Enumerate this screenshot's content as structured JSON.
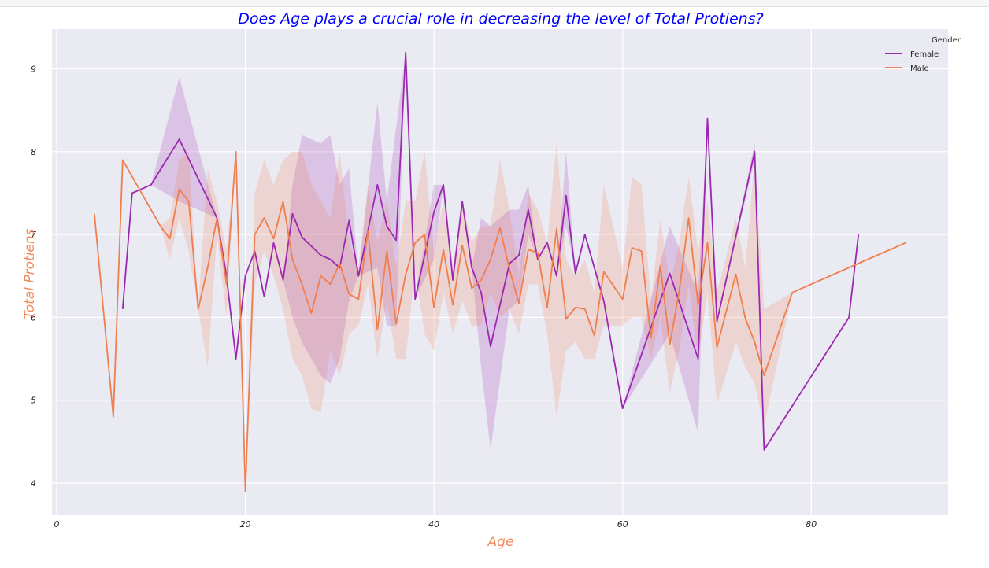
{
  "chart_data": {
    "type": "line",
    "title": "Does Age plays a crucial role in decreasing the level of Total Protiens?",
    "xlabel": "Age",
    "ylabel": "Total Protiens",
    "xlim": [
      -0.5,
      94.5
    ],
    "ylim": [
      3.62,
      9.48
    ],
    "xticks": [
      0,
      20,
      40,
      60,
      80
    ],
    "xtick_labels": [
      "0",
      "20",
      "40",
      "60",
      "80"
    ],
    "yticks": [
      4,
      5,
      6,
      7,
      8,
      9
    ],
    "ytick_labels": [
      "4",
      "5",
      "6",
      "7",
      "8",
      "9"
    ],
    "grid": true,
    "legend": {
      "title": "Gender",
      "placement": "top-right"
    },
    "colors": {
      "background": "#eaeaf2",
      "grid": "#ffffff",
      "title": "#0000ff",
      "axis_label": "#f28a5a"
    },
    "series": [
      {
        "name": "Female",
        "color": "#9c27b0",
        "x": [
          7,
          8,
          10,
          13,
          17,
          18,
          19,
          20,
          21,
          22,
          23,
          24,
          25,
          26,
          28,
          29,
          30,
          31,
          32,
          34,
          35,
          36,
          37,
          38,
          40,
          41,
          42,
          43,
          44,
          45,
          46,
          48,
          49,
          50,
          51,
          52,
          53,
          54,
          55,
          56,
          58,
          60,
          65,
          68,
          69,
          70,
          74,
          75,
          84,
          85
        ],
        "y": [
          6.1,
          7.5,
          7.6,
          8.15,
          7.2,
          6.5,
          5.5,
          6.5,
          6.8,
          6.25,
          6.9,
          6.45,
          7.25,
          6.97,
          6.75,
          6.7,
          6.6,
          7.17,
          6.5,
          7.6,
          7.1,
          6.93,
          9.2,
          6.22,
          7.27,
          7.6,
          6.45,
          7.4,
          6.6,
          6.3,
          5.65,
          6.65,
          6.75,
          7.3,
          6.7,
          6.9,
          6.5,
          7.47,
          6.53,
          7.0,
          6.2,
          4.9,
          6.53,
          5.5,
          8.4,
          5.95,
          8.0,
          4.4,
          6.0,
          7.0
        ],
        "ci_lower": [
          6.1,
          7.5,
          7.6,
          7.4,
          7.2,
          6.5,
          5.5,
          6.5,
          6.8,
          6.25,
          6.9,
          6.45,
          6.0,
          5.7,
          5.3,
          5.2,
          5.5,
          6.2,
          6.5,
          6.6,
          5.9,
          5.9,
          9.2,
          6.22,
          6.7,
          7.6,
          6.45,
          7.4,
          6.6,
          5.4,
          4.4,
          6.1,
          6.2,
          7.0,
          6.7,
          6.9,
          6.5,
          7.1,
          6.53,
          7.0,
          6.2,
          4.9,
          5.8,
          4.6,
          8.4,
          5.95,
          7.9,
          4.4,
          6.0,
          7.0
        ],
        "ci_upper": [
          6.1,
          7.5,
          7.6,
          8.9,
          7.2,
          6.5,
          5.5,
          6.5,
          6.8,
          6.25,
          6.9,
          6.45,
          7.6,
          8.2,
          8.1,
          8.2,
          7.6,
          7.8,
          6.5,
          8.6,
          7.4,
          8.3,
          9.2,
          6.22,
          7.6,
          7.6,
          6.45,
          7.4,
          6.6,
          7.2,
          7.1,
          7.3,
          7.3,
          7.6,
          6.7,
          6.9,
          6.5,
          8.0,
          6.53,
          7.0,
          6.2,
          4.9,
          7.1,
          6.3,
          8.4,
          5.95,
          8.1,
          4.4,
          6.0,
          7.0
        ]
      },
      {
        "name": "Male",
        "color": "#f07e4e",
        "x": [
          4,
          6,
          7,
          11,
          12,
          13,
          14,
          15,
          16,
          17,
          18,
          19,
          20,
          21,
          22,
          23,
          24,
          25,
          26,
          27,
          28,
          29,
          30,
          31,
          32,
          33,
          34,
          35,
          36,
          37,
          38,
          39,
          40,
          41,
          42,
          43,
          44,
          45,
          46,
          47,
          48,
          49,
          50,
          51,
          52,
          53,
          54,
          55,
          56,
          57,
          58,
          60,
          61,
          62,
          63,
          64,
          65,
          66,
          67,
          68,
          69,
          70,
          72,
          73,
          74,
          75,
          78,
          90
        ],
        "y": [
          7.25,
          4.8,
          7.9,
          7.1,
          6.95,
          7.55,
          7.4,
          6.1,
          6.6,
          7.2,
          6.4,
          8.0,
          3.9,
          7.0,
          7.2,
          6.95,
          7.4,
          6.7,
          6.4,
          6.05,
          6.5,
          6.4,
          6.65,
          6.28,
          6.22,
          7.05,
          5.85,
          6.8,
          5.92,
          6.52,
          6.9,
          7.0,
          6.12,
          6.82,
          6.15,
          6.87,
          6.35,
          6.45,
          6.7,
          7.08,
          6.58,
          6.17,
          6.82,
          6.78,
          6.12,
          7.07,
          5.98,
          6.12,
          6.1,
          5.78,
          6.55,
          6.22,
          6.84,
          6.8,
          5.75,
          6.62,
          5.67,
          6.32,
          7.2,
          6.15,
          6.9,
          5.64,
          6.52,
          5.99,
          5.7,
          5.3,
          6.3,
          6.9
        ],
        "ci_lower": [
          7.25,
          4.8,
          7.9,
          7.1,
          6.7,
          7.2,
          6.8,
          6.1,
          5.4,
          7.0,
          6.0,
          8.0,
          3.9,
          6.4,
          6.8,
          6.5,
          6.1,
          5.5,
          5.3,
          4.9,
          4.85,
          5.6,
          5.3,
          5.8,
          5.9,
          6.4,
          5.5,
          6.2,
          5.5,
          5.5,
          6.6,
          5.8,
          5.6,
          6.3,
          5.8,
          6.2,
          5.9,
          5.9,
          6.3,
          6.0,
          6.1,
          5.8,
          6.4,
          6.4,
          5.8,
          4.8,
          5.6,
          5.7,
          5.5,
          5.5,
          5.9,
          5.9,
          6.0,
          6.0,
          5.5,
          6.0,
          5.1,
          5.6,
          6.4,
          5.5,
          6.3,
          4.95,
          5.7,
          5.4,
          5.2,
          4.7,
          6.3,
          6.9
        ],
        "ci_upper": [
          7.25,
          4.8,
          7.9,
          7.1,
          7.2,
          7.9,
          8.0,
          6.1,
          7.8,
          7.4,
          6.8,
          8.0,
          3.9,
          7.5,
          7.9,
          7.6,
          7.9,
          8.0,
          8.0,
          7.6,
          7.4,
          7.2,
          8.0,
          6.9,
          6.6,
          7.6,
          6.9,
          7.4,
          6.6,
          7.4,
          7.4,
          8.0,
          6.8,
          7.4,
          6.6,
          7.4,
          6.9,
          7.1,
          7.1,
          7.9,
          7.3,
          6.5,
          7.5,
          7.3,
          6.9,
          8.1,
          6.7,
          6.5,
          6.7,
          6.3,
          7.6,
          6.6,
          7.7,
          7.6,
          6.2,
          7.2,
          6.4,
          6.9,
          7.7,
          6.8,
          7.4,
          6.3,
          7.2,
          6.6,
          7.9,
          6.1,
          6.3,
          6.9
        ]
      }
    ]
  }
}
